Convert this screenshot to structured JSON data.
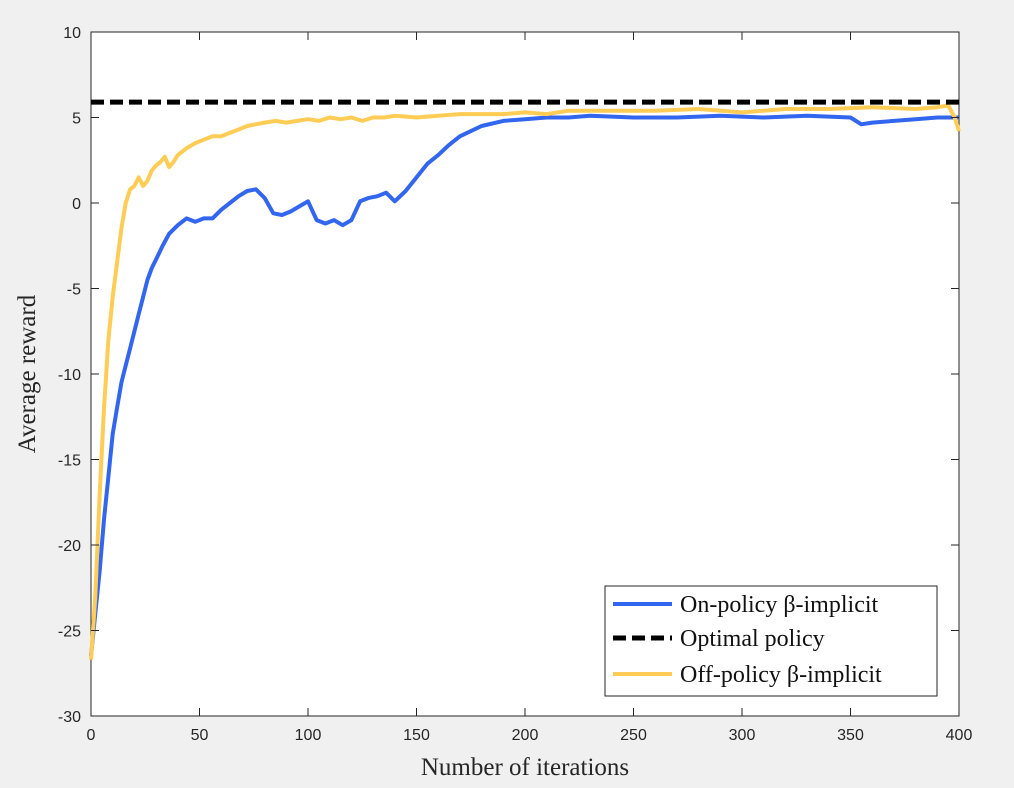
{
  "chart_data": {
    "type": "line",
    "xlabel": "Number of iterations",
    "ylabel": "Average reward",
    "xlim": [
      0,
      400
    ],
    "ylim": [
      -30,
      10
    ],
    "xticks": [
      0,
      50,
      100,
      150,
      200,
      250,
      300,
      350,
      400
    ],
    "yticks": [
      -30,
      -25,
      -20,
      -15,
      -10,
      -5,
      0,
      5,
      10
    ],
    "grid": false,
    "legend_position": "bottom-right",
    "series": [
      {
        "name": "On-policy β-implicit",
        "color": "#3366ee",
        "style": "solid",
        "x": [
          0,
          2,
          4,
          6,
          8,
          10,
          12,
          14,
          16,
          18,
          20,
          22,
          24,
          26,
          28,
          30,
          33,
          36,
          40,
          44,
          48,
          52,
          56,
          60,
          64,
          68,
          72,
          76,
          80,
          84,
          88,
          92,
          96,
          100,
          104,
          108,
          112,
          116,
          120,
          124,
          128,
          132,
          136,
          140,
          145,
          150,
          155,
          160,
          165,
          170,
          180,
          190,
          200,
          210,
          220,
          230,
          250,
          270,
          290,
          310,
          330,
          350,
          355,
          360,
          370,
          380,
          390,
          400
        ],
        "values": [
          -26.5,
          -24.0,
          -21.5,
          -18.5,
          -16.0,
          -13.5,
          -12.0,
          -10.5,
          -9.5,
          -8.5,
          -7.5,
          -6.5,
          -5.5,
          -4.5,
          -3.8,
          -3.3,
          -2.5,
          -1.8,
          -1.3,
          -0.9,
          -1.1,
          -0.9,
          -0.9,
          -0.4,
          0.0,
          0.4,
          0.7,
          0.8,
          0.3,
          -0.6,
          -0.7,
          -0.5,
          -0.2,
          0.1,
          -1.0,
          -1.2,
          -1.0,
          -1.3,
          -1.0,
          0.1,
          0.3,
          0.4,
          0.6,
          0.1,
          0.7,
          1.5,
          2.3,
          2.8,
          3.4,
          3.9,
          4.5,
          4.8,
          4.9,
          5.0,
          5.0,
          5.1,
          5.0,
          5.0,
          5.1,
          5.0,
          5.1,
          5.0,
          4.6,
          4.7,
          4.8,
          4.9,
          5.0,
          5.0
        ]
      },
      {
        "name": "Optimal policy",
        "color": "#000000",
        "style": "dashed",
        "x": [
          0,
          400
        ],
        "values": [
          5.9,
          5.9
        ]
      },
      {
        "name": "Off-policy β-implicit",
        "color": "#ffcc55",
        "style": "solid",
        "x": [
          0,
          2,
          4,
          6,
          8,
          10,
          12,
          14,
          16,
          18,
          20,
          22,
          24,
          26,
          28,
          30,
          32,
          34,
          36,
          38,
          40,
          44,
          48,
          52,
          56,
          60,
          64,
          68,
          72,
          76,
          80,
          85,
          90,
          95,
          100,
          105,
          110,
          115,
          120,
          125,
          130,
          135,
          140,
          150,
          160,
          170,
          180,
          190,
          200,
          210,
          220,
          240,
          260,
          280,
          300,
          320,
          340,
          360,
          380,
          390,
          395,
          398,
          400
        ],
        "values": [
          -26.7,
          -23.0,
          -17.0,
          -12.0,
          -8.0,
          -5.5,
          -3.5,
          -1.5,
          0.0,
          0.8,
          1.0,
          1.5,
          1.0,
          1.3,
          1.9,
          2.2,
          2.4,
          2.7,
          2.1,
          2.4,
          2.8,
          3.2,
          3.5,
          3.7,
          3.9,
          3.9,
          4.1,
          4.3,
          4.5,
          4.6,
          4.7,
          4.8,
          4.7,
          4.8,
          4.9,
          4.8,
          5.0,
          4.9,
          5.0,
          4.8,
          5.0,
          5.0,
          5.1,
          5.0,
          5.1,
          5.2,
          5.2,
          5.2,
          5.3,
          5.2,
          5.4,
          5.4,
          5.4,
          5.5,
          5.3,
          5.5,
          5.5,
          5.6,
          5.5,
          5.6,
          5.7,
          5.0,
          4.2
        ]
      }
    ]
  }
}
